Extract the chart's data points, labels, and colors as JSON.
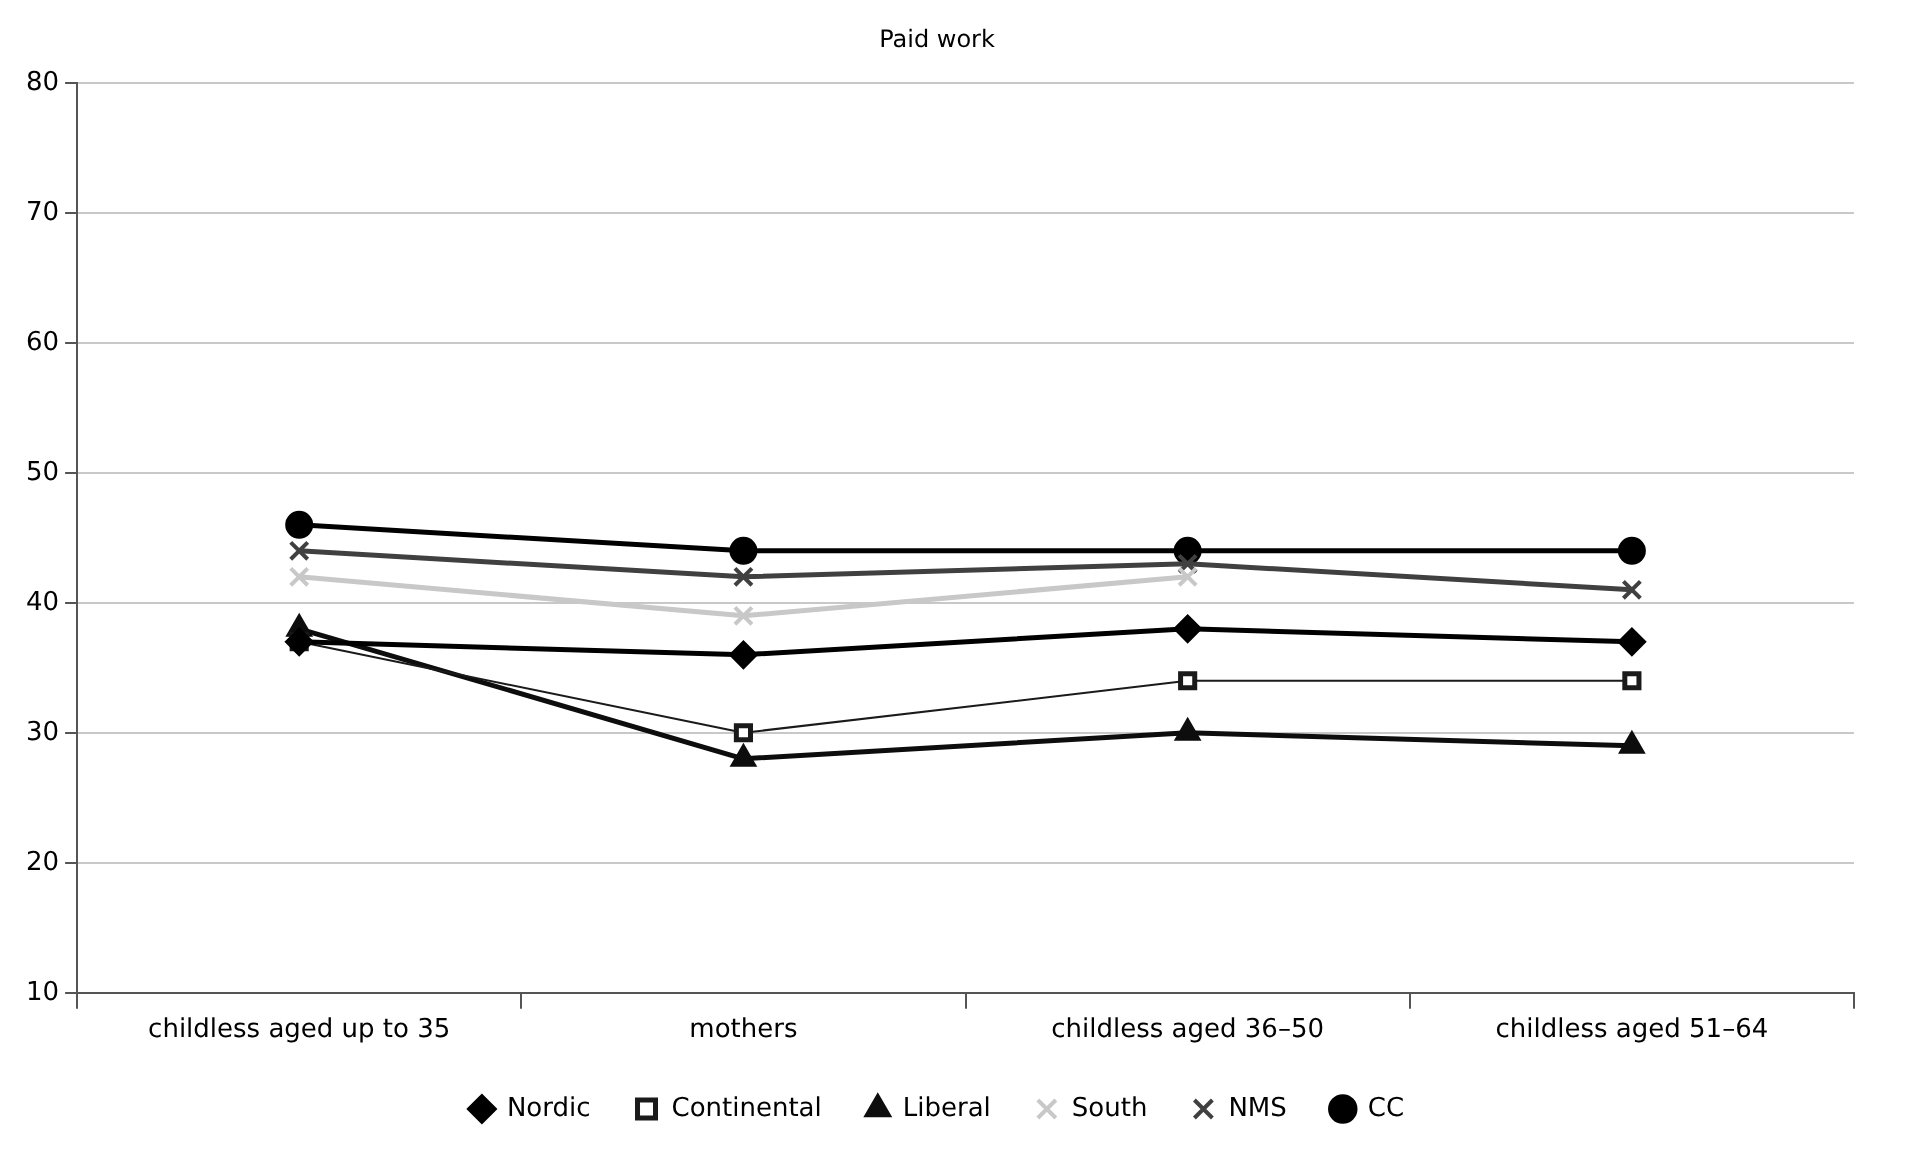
{
  "chart_data": {
    "type": "line",
    "title": "Paid work",
    "categories": [
      "childless aged up to 35",
      "mothers",
      "childless aged 36–50",
      "childless aged 51–64"
    ],
    "series": [
      {
        "name": "Nordic",
        "color": "#000000",
        "marker": "diamond",
        "values": [
          37,
          36,
          38,
          37
        ]
      },
      {
        "name": "Continental",
        "color": "#1a1a1a",
        "marker": "square",
        "values": [
          37,
          30,
          34,
          34
        ]
      },
      {
        "name": "Liberal",
        "color": "#0d0d0d",
        "marker": "triangle",
        "values": [
          38,
          28,
          30,
          29
        ]
      },
      {
        "name": "South",
        "color": "#c8c8c8",
        "marker": "cross",
        "values": [
          42,
          39,
          42,
          null
        ]
      },
      {
        "name": "NMS",
        "color": "#404040",
        "marker": "cross",
        "values": [
          44,
          42,
          43,
          41
        ]
      },
      {
        "name": "CC",
        "color": "#000000",
        "marker": "circle",
        "values": [
          46,
          44,
          44,
          44
        ]
      }
    ],
    "ylim": [
      10,
      80
    ],
    "yticks": [
      10,
      20,
      30,
      40,
      50,
      60,
      70,
      80
    ],
    "grid": "y",
    "legend": "bottom"
  }
}
